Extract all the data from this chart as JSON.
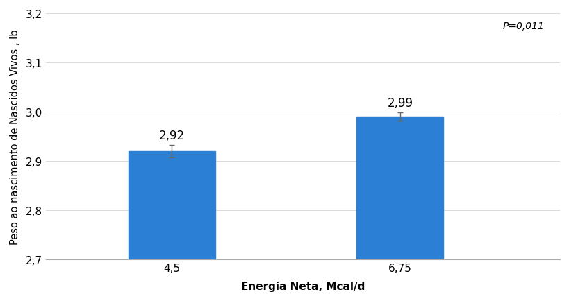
{
  "categories": [
    "4,5",
    "6,75"
  ],
  "values": [
    2.92,
    2.99
  ],
  "errors": [
    0.013,
    0.008
  ],
  "bar_color": "#2B7FD4",
  "bar_width": 0.38,
  "xlabel": "Energia Neta, Mcal/d",
  "ylabel": "Peso ao nascimento de Nascidos Vivos , lb",
  "ylim": [
    2.7,
    3.2
  ],
  "ybase": 2.7,
  "yticks": [
    2.7,
    2.8,
    2.9,
    3.0,
    3.1,
    3.2
  ],
  "ytick_labels": [
    "2,7",
    "2,8",
    "2,9",
    "3,0",
    "3,1",
    "3,2"
  ],
  "value_labels": [
    "2,92",
    "2,99"
  ],
  "pvalue_text": "P=0,011",
  "background_color": "#ffffff",
  "label_fontsize": 11,
  "tick_fontsize": 11,
  "value_label_fontsize": 12,
  "pvalue_fontsize": 10,
  "x_positions": [
    1,
    2
  ],
  "xlim": [
    0.45,
    2.7
  ]
}
